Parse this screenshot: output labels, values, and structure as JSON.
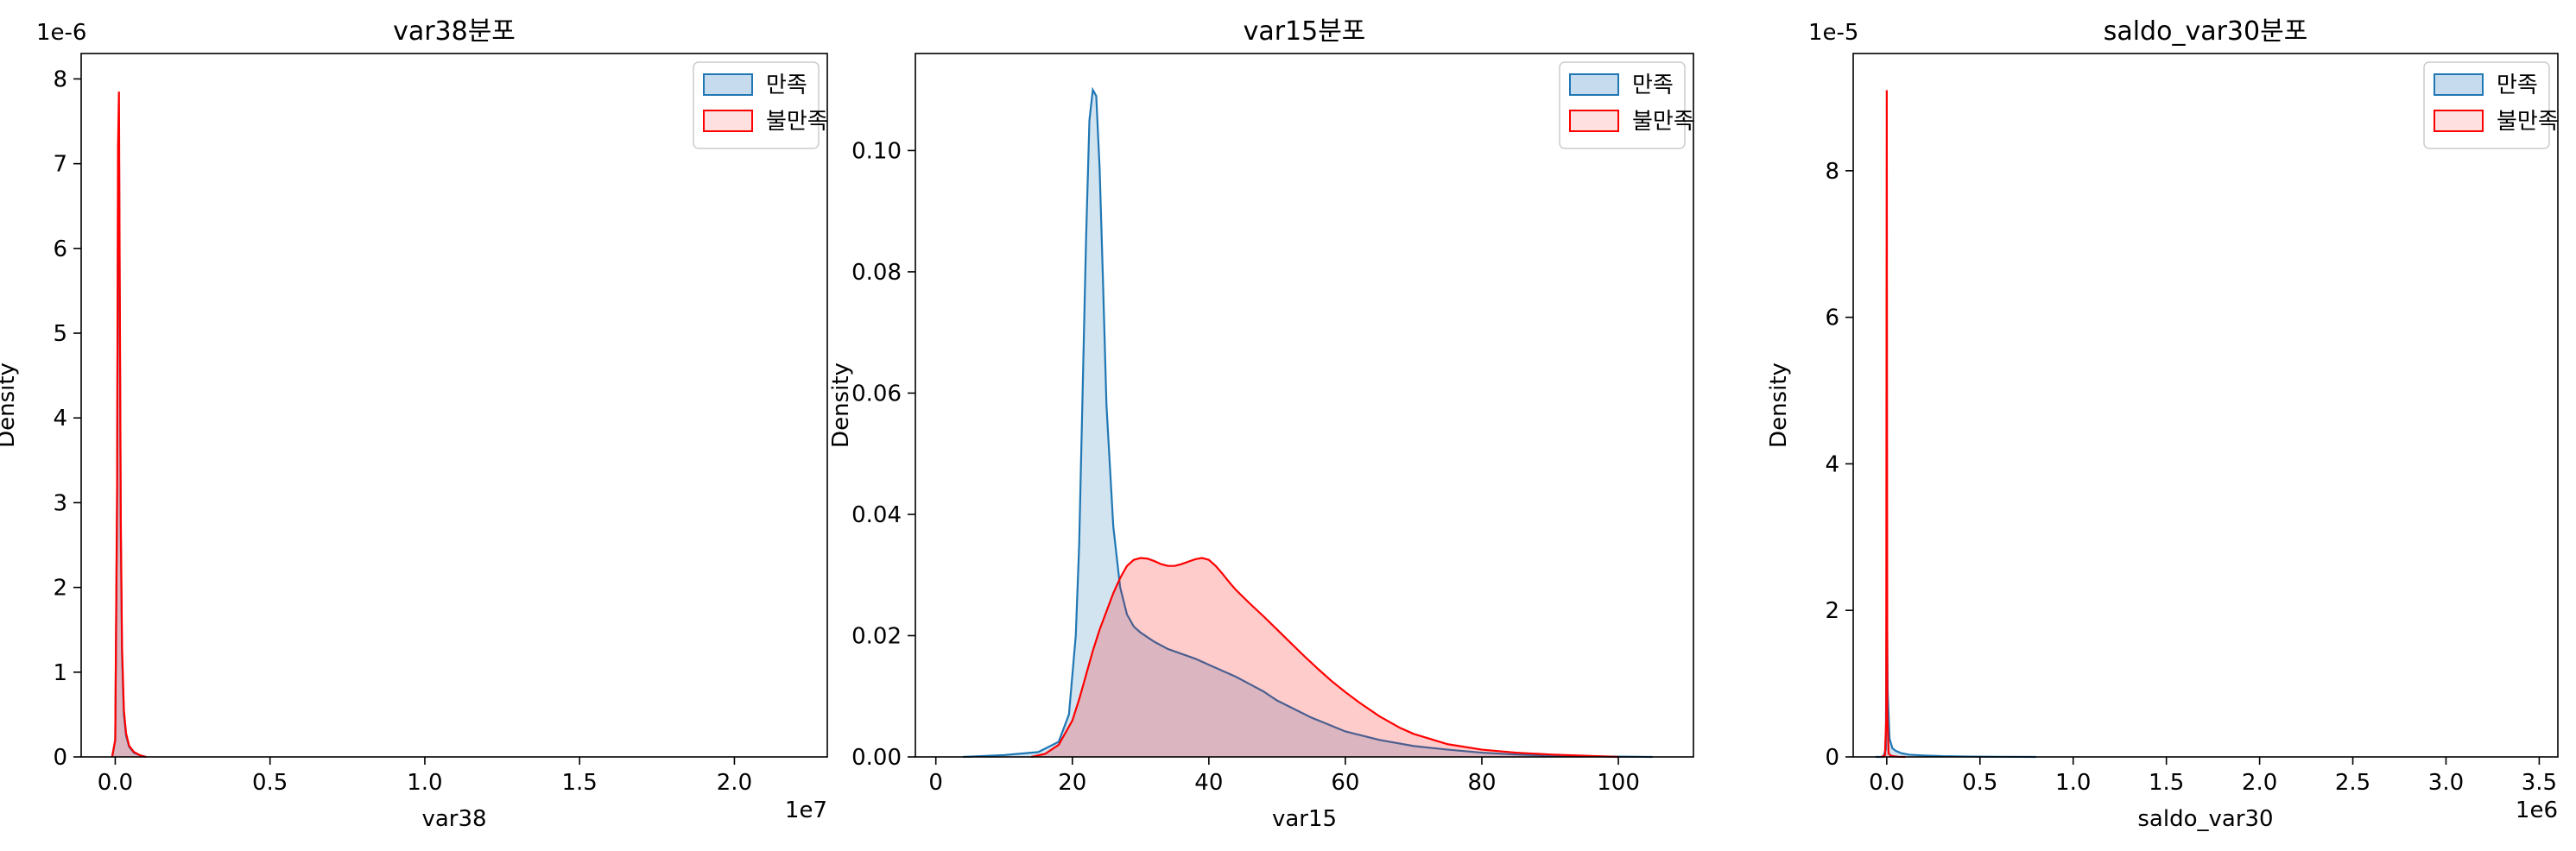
{
  "chart_data": [
    {
      "type": "area",
      "title": "var38분포",
      "xlabel": "var38",
      "ylabel": "Density",
      "xlim": [
        -1100000,
        23000000
      ],
      "ylim": [
        0,
        8.3e-06
      ],
      "x_scale_label": "1e7",
      "y_scale_label": "1e-6",
      "xticks": [
        {
          "v": 0,
          "label": "0.0"
        },
        {
          "v": 5000000,
          "label": "0.5"
        },
        {
          "v": 10000000,
          "label": "1.0"
        },
        {
          "v": 15000000,
          "label": "1.5"
        },
        {
          "v": 20000000,
          "label": "2.0"
        }
      ],
      "yticks": [
        {
          "v": 0,
          "label": "0"
        },
        {
          "v": 1e-06,
          "label": "1"
        },
        {
          "v": 2e-06,
          "label": "2"
        },
        {
          "v": 3e-06,
          "label": "3"
        },
        {
          "v": 4e-06,
          "label": "4"
        },
        {
          "v": 5e-06,
          "label": "5"
        },
        {
          "v": 6e-06,
          "label": "6"
        },
        {
          "v": 7e-06,
          "label": "7"
        },
        {
          "v": 8e-06,
          "label": "8"
        }
      ],
      "legend_position": "top-right",
      "series": [
        {
          "name": "만족",
          "color": "#1f77b4",
          "fill": "#c6dbee",
          "x": [
            -100000,
            0,
            60000,
            90000,
            120000,
            150000,
            180000,
            220000,
            280000,
            350000,
            450000,
            600000,
            800000,
            1000000
          ],
          "y": [
            0,
            2e-07,
            3e-06,
            6.8e-06,
            7.4e-06,
            5e-06,
            2.6e-06,
            1.2e-06,
            5e-07,
            2.5e-07,
            1.2e-07,
            5e-08,
            2e-08,
            0
          ]
        },
        {
          "name": "불만족",
          "color": "#ff0000",
          "fill": "#ffe0e0",
          "x": [
            -100000,
            0,
            60000,
            90000,
            120000,
            150000,
            180000,
            220000,
            280000,
            350000,
            450000,
            600000,
            800000,
            1000000
          ],
          "y": [
            0,
            2e-07,
            3.2e-06,
            7.2e-06,
            7.85e-06,
            5.3e-06,
            2.8e-06,
            1.3e-06,
            5.5e-07,
            2.8e-07,
            1.3e-07,
            6e-08,
            2e-08,
            0
          ]
        }
      ]
    },
    {
      "type": "area",
      "title": "var15분포",
      "xlabel": "var15",
      "ylabel": "Density",
      "xlim": [
        -3,
        111
      ],
      "ylim": [
        0,
        0.116
      ],
      "x_scale_label": "",
      "y_scale_label": "",
      "xticks": [
        {
          "v": 0,
          "label": "0"
        },
        {
          "v": 20,
          "label": "20"
        },
        {
          "v": 40,
          "label": "40"
        },
        {
          "v": 60,
          "label": "60"
        },
        {
          "v": 80,
          "label": "80"
        },
        {
          "v": 100,
          "label": "100"
        }
      ],
      "yticks": [
        {
          "v": 0,
          "label": "0.00"
        },
        {
          "v": 0.02,
          "label": "0.02"
        },
        {
          "v": 0.04,
          "label": "0.04"
        },
        {
          "v": 0.06,
          "label": "0.06"
        },
        {
          "v": 0.08,
          "label": "0.08"
        },
        {
          "v": 0.1,
          "label": "0.10"
        }
      ],
      "legend_position": "top-right",
      "series": [
        {
          "name": "만족",
          "color": "#1f77b4",
          "fill": "#c6dbee",
          "x": [
            4,
            10,
            15,
            18,
            19.5,
            20.5,
            21,
            21.5,
            22,
            22.5,
            23,
            23.5,
            24,
            24.5,
            25,
            26,
            27,
            28,
            29,
            30,
            32,
            34,
            36,
            38,
            40,
            42,
            44,
            46,
            48,
            50,
            55,
            60,
            65,
            70,
            75,
            80,
            85,
            90,
            95,
            100,
            105
          ],
          "y": [
            0,
            0.0003,
            0.0008,
            0.0025,
            0.007,
            0.02,
            0.035,
            0.06,
            0.085,
            0.105,
            0.11,
            0.109,
            0.097,
            0.078,
            0.058,
            0.038,
            0.028,
            0.0235,
            0.0215,
            0.0205,
            0.019,
            0.0178,
            0.017,
            0.0162,
            0.0152,
            0.0142,
            0.0132,
            0.012,
            0.0108,
            0.0093,
            0.0065,
            0.0042,
            0.0028,
            0.0018,
            0.0012,
            0.0007,
            0.0004,
            0.0002,
            0.0001,
            5e-05,
            0
          ]
        },
        {
          "name": "불만족",
          "color": "#ff0000",
          "fill": "#ffe0e0",
          "x": [
            14,
            16,
            18,
            20,
            21,
            22,
            23,
            24,
            25,
            26,
            27,
            28,
            29,
            30,
            31,
            32,
            33,
            34,
            35,
            36,
            37,
            38,
            39,
            40,
            41,
            42,
            43,
            44,
            46,
            48,
            50,
            52,
            54,
            56,
            58,
            60,
            62,
            65,
            68,
            70,
            75,
            80,
            85,
            90,
            95,
            100
          ],
          "y": [
            0,
            0.0005,
            0.002,
            0.006,
            0.0095,
            0.0135,
            0.0175,
            0.021,
            0.024,
            0.027,
            0.0295,
            0.0315,
            0.0325,
            0.0328,
            0.0327,
            0.0323,
            0.0318,
            0.0315,
            0.0315,
            0.0318,
            0.0322,
            0.0326,
            0.0328,
            0.0325,
            0.0315,
            0.0302,
            0.0288,
            0.0275,
            0.0253,
            0.0232,
            0.021,
            0.0188,
            0.0166,
            0.0145,
            0.0125,
            0.0107,
            0.009,
            0.0067,
            0.0048,
            0.0038,
            0.0021,
            0.0012,
            0.0007,
            0.0004,
            0.0002,
            0
          ]
        }
      ]
    },
    {
      "type": "area",
      "title": "saldo_var30분포",
      "xlabel": "saldo_var30",
      "ylabel": "Density",
      "xlim": [
        -180000,
        3600000
      ],
      "ylim": [
        0,
        9.6e-05
      ],
      "x_scale_label": "1e6",
      "y_scale_label": "1e-5",
      "xticks": [
        {
          "v": 0,
          "label": "0.0"
        },
        {
          "v": 500000,
          "label": "0.5"
        },
        {
          "v": 1000000,
          "label": "1.0"
        },
        {
          "v": 1500000,
          "label": "1.5"
        },
        {
          "v": 2000000,
          "label": "2.0"
        },
        {
          "v": 2500000,
          "label": "2.5"
        },
        {
          "v": 3000000,
          "label": "3.0"
        },
        {
          "v": 3500000,
          "label": "3.5"
        }
      ],
      "yticks": [
        {
          "v": 0,
          "label": "0"
        },
        {
          "v": 2e-05,
          "label": "2"
        },
        {
          "v": 4e-05,
          "label": "4"
        },
        {
          "v": 6e-05,
          "label": "6"
        },
        {
          "v": 8e-05,
          "label": "8"
        }
      ],
      "legend_position": "top-right",
      "series": [
        {
          "name": "만족",
          "color": "#1f77b4",
          "fill": "#c6dbee",
          "x": [
            -60000,
            -20000,
            -5000,
            0,
            5000,
            15000,
            30000,
            50000,
            80000,
            120000,
            200000,
            300000,
            450000,
            600000,
            800000
          ],
          "y": [
            0,
            0,
            1e-06,
            2.6e-05,
            9e-06,
            2.5e-06,
            1.2e-06,
            8e-07,
            5e-07,
            3e-07,
            2e-07,
            1e-07,
            5e-08,
            2e-08,
            0
          ]
        },
        {
          "name": "불만족",
          "color": "#ff0000",
          "fill": "#ffe0e0",
          "x": [
            -30000,
            -10000,
            -3000,
            0,
            3000,
            10000,
            20000,
            35000,
            60000,
            100000
          ],
          "y": [
            0,
            2e-07,
            5e-06,
            9.1e-05,
            6e-06,
            5e-07,
            2e-07,
            1e-07,
            2e-08,
            0
          ]
        }
      ]
    }
  ]
}
